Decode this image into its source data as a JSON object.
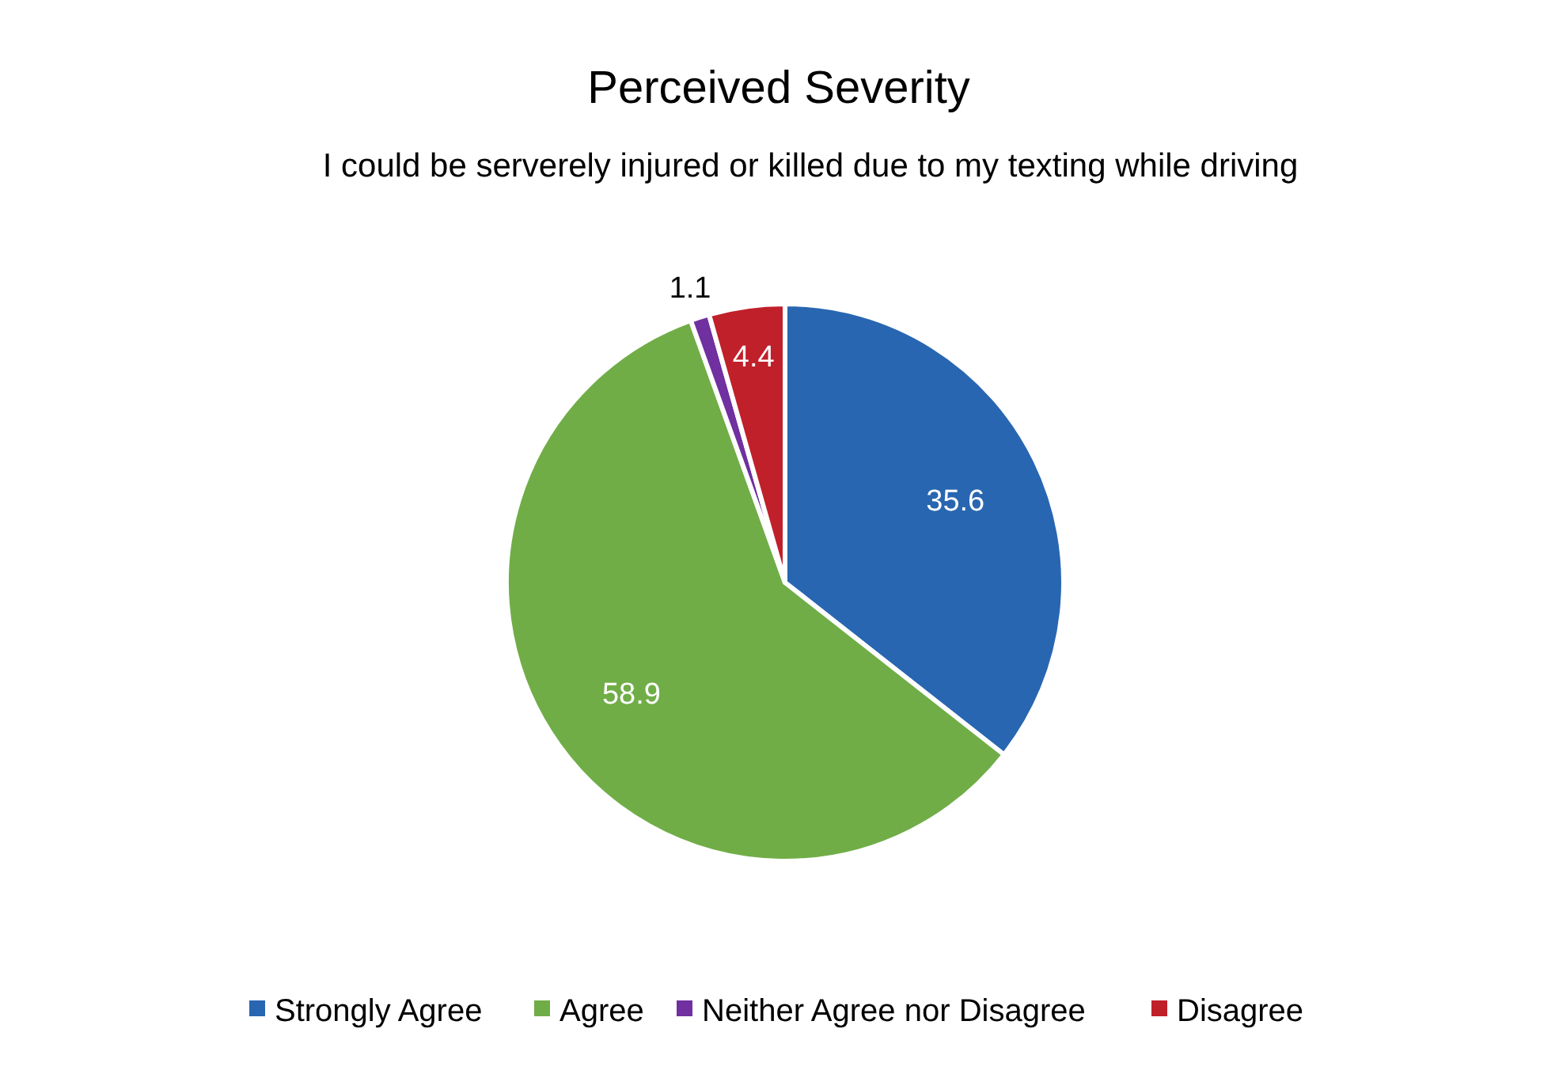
{
  "chart_data": {
    "type": "pie",
    "title": "Perceived Severity",
    "subtitle": "I could be serverely injured or killed due to my texting while driving",
    "categories": [
      "Strongly Agree",
      "Agree",
      "Neither Agree nor Disagree",
      "Disagree"
    ],
    "values": [
      35.6,
      58.9,
      1.1,
      4.4
    ],
    "colors": [
      "#2866b1",
      "#70ad47",
      "#7030a0",
      "#c0202a"
    ],
    "data_labels": true,
    "legend": "bottom"
  }
}
